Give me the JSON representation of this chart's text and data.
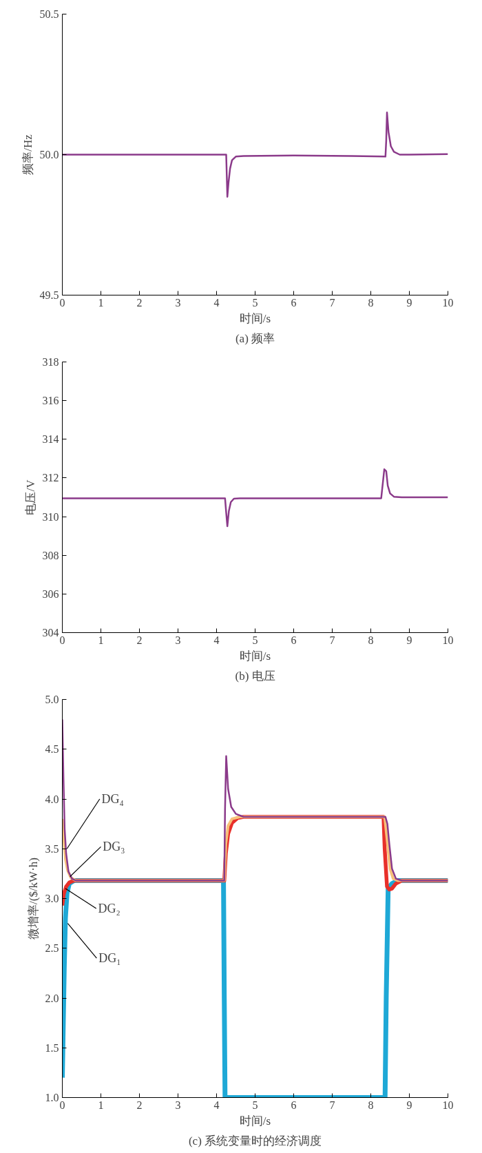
{
  "chart_data": [
    {
      "type": "line",
      "title": "(a) 频率",
      "xlabel": "时间/s",
      "ylabel": "频率/Hz",
      "xlim": [
        0,
        10
      ],
      "ylim": [
        49.5,
        50.5
      ],
      "xticks": [
        0,
        1,
        2,
        3,
        4,
        5,
        6,
        7,
        8,
        9,
        10
      ],
      "yticks": [
        {
          "value": 49.5,
          "label": "49.5"
        },
        {
          "value": 50,
          "label": "50.0"
        },
        {
          "value": 50.5,
          "label": "50.5"
        }
      ],
      "series": [
        {
          "color": "#8b3a8a",
          "x": [
            0,
            4.25,
            4.28,
            4.31,
            4.35,
            4.4,
            4.5,
            4.7,
            6,
            7.5,
            8.38,
            8.4,
            8.42,
            8.46,
            8.52,
            8.6,
            8.75,
            9,
            10
          ],
          "values": [
            50.0,
            50.0,
            49.85,
            49.9,
            49.95,
            49.98,
            49.993,
            49.995,
            49.997,
            49.995,
            49.993,
            50.05,
            50.15,
            50.08,
            50.03,
            50.01,
            50.0,
            50.0,
            50.002
          ]
        }
      ]
    },
    {
      "type": "line",
      "title": "(b) 电压",
      "xlabel": "时间/s",
      "ylabel": "电压/V",
      "xlim": [
        0,
        10
      ],
      "ylim": [
        304,
        318
      ],
      "xticks": [
        0,
        1,
        2,
        3,
        4,
        5,
        6,
        7,
        8,
        9,
        10
      ],
      "yticks": [
        304,
        306,
        308,
        310,
        312,
        314,
        316,
        318
      ],
      "series": [
        {
          "color": "#8b3a8a",
          "x": [
            0,
            4.22,
            4.25,
            4.28,
            4.32,
            4.37,
            4.45,
            4.6,
            6,
            8.2,
            8.27,
            8.35,
            8.4,
            8.44,
            8.5,
            8.6,
            8.8,
            10
          ],
          "values": [
            310.95,
            310.95,
            310.2,
            309.5,
            310.3,
            310.75,
            310.93,
            310.95,
            310.95,
            310.95,
            310.95,
            312.45,
            312.35,
            311.6,
            311.2,
            311.03,
            311.0,
            311.0
          ]
        }
      ]
    },
    {
      "type": "line",
      "title": "(c) 系统变量时的经济调度",
      "xlabel": "时间/s",
      "ylabel": "微增率/($/kW·h)",
      "xlim": [
        0,
        10
      ],
      "ylim": [
        1.0,
        5.0
      ],
      "xticks": [
        0,
        1,
        2,
        3,
        4,
        5,
        6,
        7,
        8,
        9,
        10
      ],
      "yticks": [
        {
          "value": 1,
          "label": "1.0"
        },
        {
          "value": 1.5,
          "label": "1.5"
        },
        {
          "value": 2,
          "label": "2.0"
        },
        {
          "value": 2.5,
          "label": "2.5"
        },
        {
          "value": 3,
          "label": "3.0"
        },
        {
          "value": 3.5,
          "label": "3.5"
        },
        {
          "value": 4,
          "label": "4.0"
        },
        {
          "value": 4.5,
          "label": "4.5"
        },
        {
          "value": 5,
          "label": "5.0"
        }
      ],
      "annotations": [
        {
          "text": "DG₄",
          "x": 0.12,
          "y": 3.5
        },
        {
          "text": "DG₃",
          "x": 0.2,
          "y": 3.22
        },
        {
          "text": "DG₂",
          "x": 0.08,
          "y": 3.1
        },
        {
          "text": "DG₁",
          "x": 0.14,
          "y": 2.75
        }
      ],
      "series": [
        {
          "color": "#1ea8d6",
          "x": [
            0,
            0.05,
            0.08,
            0.12,
            0.18,
            0.3,
            4.18,
            4.2,
            4.22,
            8.37,
            8.4,
            8.45,
            8.55,
            8.7,
            10
          ],
          "values": [
            1.2,
            2.3,
            2.8,
            3.05,
            3.15,
            3.18,
            3.18,
            2.0,
            1.0,
            1.0,
            2.0,
            3.1,
            3.15,
            3.18,
            3.18
          ]
        },
        {
          "color": "#e8302a",
          "x": [
            0,
            0.04,
            0.1,
            0.18,
            0.3,
            4.2,
            4.24,
            4.3,
            4.4,
            4.55,
            4.7,
            8.33,
            8.36,
            8.42,
            8.48,
            8.55,
            8.65,
            8.8,
            10
          ],
          "values": [
            2.93,
            3.05,
            3.12,
            3.16,
            3.18,
            3.18,
            3.45,
            3.65,
            3.76,
            3.81,
            3.82,
            3.82,
            3.5,
            3.12,
            3.09,
            3.1,
            3.15,
            3.18,
            3.18
          ]
        },
        {
          "color": "#f7c07a",
          "x": [
            0,
            0.04,
            0.08,
            0.14,
            0.22,
            0.35,
            4.2,
            4.24,
            4.3,
            4.4,
            4.6,
            8.36,
            8.42,
            8.5,
            8.58,
            8.7,
            10
          ],
          "values": [
            3.8,
            3.6,
            3.4,
            3.28,
            3.21,
            3.18,
            3.18,
            3.55,
            3.73,
            3.8,
            3.82,
            3.82,
            3.6,
            3.3,
            3.2,
            3.18,
            3.18
          ]
        },
        {
          "color": "#8b3a8a",
          "x": [
            0,
            0.03,
            0.06,
            0.1,
            0.16,
            0.25,
            0.35,
            4.2,
            4.22,
            4.25,
            4.3,
            4.38,
            4.5,
            4.7,
            8.38,
            8.43,
            8.48,
            8.55,
            8.65,
            8.8,
            10
          ],
          "values": [
            4.8,
            4.2,
            3.7,
            3.45,
            3.27,
            3.2,
            3.18,
            3.18,
            3.9,
            4.43,
            4.1,
            3.92,
            3.85,
            3.82,
            3.82,
            3.75,
            3.55,
            3.3,
            3.2,
            3.18,
            3.18
          ]
        }
      ]
    }
  ]
}
